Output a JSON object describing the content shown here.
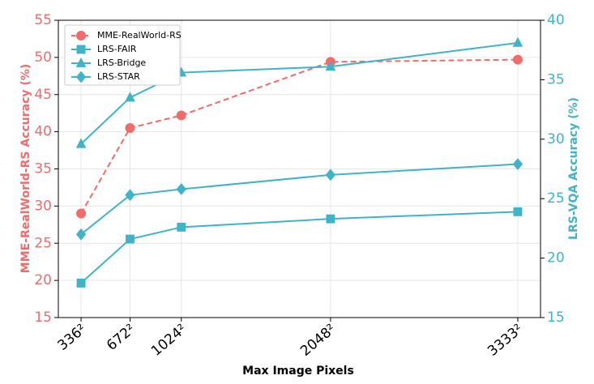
{
  "chart_data": {
    "type": "line",
    "x_label": "Max Image Pixels",
    "y_label": "MME-RealWorld-RS Accuracy (%)",
    "y2_label": "LRS-VQA Accuracy (%)",
    "x": [
      336,
      672,
      1024,
      2048,
      3333
    ],
    "xlim": [
      180,
      3489
    ],
    "xticks": [
      {
        "value": 336,
        "label": "336²"
      },
      {
        "value": 672,
        "label": "672²"
      },
      {
        "value": 1024,
        "label": "1024²"
      },
      {
        "value": 2048,
        "label": "2048²"
      },
      {
        "value": 3333,
        "label": "3333²"
      }
    ],
    "ylim": [
      15,
      55
    ],
    "yticks": [
      15,
      20,
      25,
      30,
      35,
      40,
      45,
      50,
      55
    ],
    "y_color": "#f26b6b",
    "y2lim": [
      15,
      40
    ],
    "y2ticks": [
      15,
      20,
      25,
      30,
      35,
      40
    ],
    "y2_color": "#3fb4c9",
    "grid": true,
    "legend": "upper-left",
    "series": [
      {
        "name": "MME-RealWorld-RS",
        "color": "#f26b6b",
        "marker": "circle",
        "linestyle": "dashed",
        "values": [
          29.0,
          40.5,
          42.2,
          49.4,
          49.7
        ]
      },
      {
        "name": "LRS-FAIR",
        "color": "#3fb4c9",
        "marker": "square",
        "linestyle": "solid",
        "axis": "y2",
        "values": [
          17.9,
          21.6,
          22.6,
          23.3,
          23.9
        ]
      },
      {
        "name": "LRS-Bridge",
        "color": "#3fb4c9",
        "marker": "triangle",
        "linestyle": "solid",
        "axis": "y2",
        "values": [
          29.6,
          33.5,
          35.6,
          36.1,
          38.1
        ]
      },
      {
        "name": "LRS-STAR",
        "color": "#3fb4c9",
        "marker": "diamond",
        "linestyle": "solid",
        "axis": "y2",
        "values": [
          22.0,
          25.3,
          25.8,
          27.0,
          27.9
        ]
      }
    ]
  }
}
